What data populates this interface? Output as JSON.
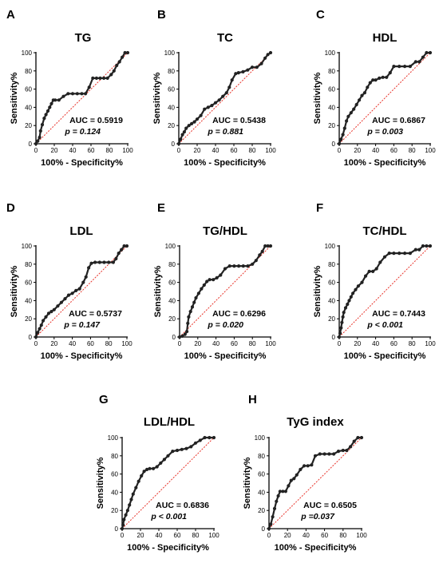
{
  "chart_data": [
    {
      "letter": "A",
      "title": "TG",
      "type": "line",
      "xlabel": "100% - Specificity%",
      "ylabel": "Sensitivity%",
      "xlim": [
        0,
        100
      ],
      "ylim": [
        0,
        100
      ],
      "xticks": [
        "0",
        "20",
        "40",
        "60",
        "80",
        "100"
      ],
      "yticks": [
        "0",
        "20",
        "40",
        "60",
        "80",
        "100"
      ],
      "auc": "AUC = 0.5919",
      "p": "p = 0.124",
      "x": [
        0,
        2,
        4,
        5,
        7,
        9,
        11,
        13,
        15,
        17,
        19,
        21,
        25,
        30,
        35,
        40,
        45,
        50,
        54,
        58,
        62,
        66,
        70,
        74,
        78,
        82,
        85,
        88,
        91,
        94,
        97,
        100
      ],
      "y": [
        0,
        3,
        7,
        14,
        21,
        28,
        32,
        36,
        40,
        44,
        48,
        48,
        48,
        52,
        55,
        55,
        55,
        55,
        55,
        62,
        72,
        72,
        72,
        72,
        72,
        76,
        80,
        86,
        90,
        95,
        100,
        100
      ]
    },
    {
      "letter": "B",
      "title": "TC",
      "type": "line",
      "xlabel": "100% - Specificity%",
      "ylabel": "Sensitivity%",
      "xlim": [
        0,
        100
      ],
      "ylim": [
        0,
        100
      ],
      "xticks": [
        "0",
        "20",
        "40",
        "60",
        "80",
        "100"
      ],
      "yticks": [
        "0",
        "20",
        "40",
        "60",
        "80",
        "100"
      ],
      "auc": "AUC = 0.5438",
      "p": "p = 0.881",
      "x": [
        0,
        2,
        4,
        6,
        8,
        11,
        14,
        17,
        20,
        24,
        28,
        32,
        36,
        40,
        44,
        48,
        52,
        55,
        58,
        62,
        65,
        70,
        75,
        80,
        85,
        90,
        94,
        97,
        100
      ],
      "y": [
        0,
        5,
        10,
        13,
        17,
        20,
        22,
        24,
        27,
        31,
        38,
        40,
        42,
        45,
        48,
        52,
        56,
        62,
        70,
        77,
        78,
        79,
        81,
        84,
        84,
        88,
        94,
        98,
        100
      ]
    },
    {
      "letter": "C",
      "title": "HDL",
      "type": "line",
      "xlabel": "100% - Specificity%",
      "ylabel": "Sensitivity%",
      "xlim": [
        0,
        100
      ],
      "ylim": [
        0,
        100
      ],
      "xticks": [
        "0",
        "20",
        "40",
        "60",
        "80",
        "100"
      ],
      "yticks": [
        "0",
        "20",
        "40",
        "60",
        "80",
        "100"
      ],
      "auc": "AUC = 0.6867",
      "p": "p = 0.003",
      "x": [
        0,
        2,
        4,
        6,
        8,
        10,
        13,
        16,
        19,
        22,
        25,
        28,
        31,
        34,
        37,
        40,
        44,
        48,
        52,
        56,
        60,
        66,
        72,
        78,
        84,
        88,
        92,
        96,
        100
      ],
      "y": [
        0,
        5,
        10,
        17,
        25,
        30,
        34,
        38,
        43,
        48,
        53,
        56,
        62,
        67,
        70,
        70,
        72,
        73,
        73,
        78,
        85,
        85,
        85,
        85,
        90,
        90,
        95,
        100,
        100
      ]
    },
    {
      "letter": "D",
      "title": "LDL",
      "type": "line",
      "xlabel": "100% - Specificity%",
      "ylabel": "Sensitivity%",
      "xlim": [
        0,
        100
      ],
      "ylim": [
        0,
        100
      ],
      "xticks": [
        "0",
        "20",
        "40",
        "60",
        "80",
        "100"
      ],
      "yticks": [
        "0",
        "20",
        "40",
        "60",
        "80",
        "100"
      ],
      "auc": "AUC = 0.5737",
      "p": "p = 0.147",
      "x": [
        0,
        2,
        4,
        6,
        8,
        11,
        14,
        17,
        20,
        24,
        28,
        32,
        36,
        40,
        44,
        48,
        52,
        55,
        58,
        61,
        65,
        70,
        75,
        80,
        85,
        88,
        91,
        94,
        97,
        100
      ],
      "y": [
        0,
        5,
        9,
        13,
        18,
        22,
        26,
        28,
        30,
        34,
        38,
        42,
        46,
        48,
        51,
        53,
        60,
        66,
        76,
        81,
        82,
        82,
        82,
        82,
        82,
        86,
        92,
        96,
        100,
        100
      ]
    },
    {
      "letter": "E",
      "title": "TG/HDL",
      "type": "line",
      "xlabel": "100% - Specificity%",
      "ylabel": "Sensitivity%",
      "xlim": [
        0,
        100
      ],
      "ylim": [
        0,
        100
      ],
      "xticks": [
        "0",
        "20",
        "40",
        "60",
        "80",
        "100"
      ],
      "yticks": [
        "0",
        "20",
        "40",
        "60",
        "80",
        "100"
      ],
      "auc": "AUC = 0.6296",
      "p": "p = 0.020",
      "x": [
        0,
        3,
        6,
        8,
        9,
        10,
        12,
        14,
        16,
        18,
        21,
        24,
        27,
        30,
        33,
        37,
        41,
        45,
        50,
        55,
        60,
        65,
        70,
        75,
        80,
        84,
        88,
        91,
        94,
        97,
        100
      ],
      "y": [
        0,
        1,
        3,
        6,
        15,
        22,
        28,
        33,
        38,
        43,
        48,
        53,
        57,
        61,
        63,
        63,
        65,
        68,
        75,
        78,
        78,
        78,
        78,
        78,
        80,
        84,
        90,
        94,
        100,
        100,
        100
      ]
    },
    {
      "letter": "F",
      "title": "TC/HDL",
      "type": "line",
      "xlabel": "100% - Specificity%",
      "ylabel": "Sensitivity%",
      "xlim": [
        0,
        100
      ],
      "ylim": [
        0,
        100
      ],
      "xticks": [
        "0",
        "20",
        "40",
        "60",
        "80",
        "100"
      ],
      "yticks": [
        "0",
        "20",
        "40",
        "60",
        "80",
        "100"
      ],
      "auc": "AUC = 0.7443",
      "p": "p < 0.001",
      "x": [
        0,
        1,
        2,
        3,
        4,
        5,
        7,
        9,
        11,
        13,
        15,
        18,
        21,
        25,
        29,
        33,
        37,
        41,
        45,
        50,
        55,
        60,
        66,
        72,
        78,
        84,
        88,
        92,
        96,
        100
      ],
      "y": [
        0,
        4,
        10,
        16,
        22,
        27,
        32,
        36,
        40,
        44,
        48,
        52,
        56,
        60,
        67,
        72,
        72,
        75,
        82,
        88,
        92,
        92,
        92,
        92,
        92,
        96,
        96,
        100,
        100,
        100
      ]
    },
    {
      "letter": "G",
      "title": "LDL/HDL",
      "type": "line",
      "xlabel": "100% - Specificity%",
      "ylabel": "Sensitivity%",
      "xlim": [
        0,
        100
      ],
      "ylim": [
        0,
        100
      ],
      "xticks": [
        "0",
        "20",
        "40",
        "60",
        "80",
        "100"
      ],
      "yticks": [
        "0",
        "20",
        "40",
        "60",
        "80",
        "100"
      ],
      "auc": "AUC = 0.6836",
      "p": "p < 0.001",
      "x": [
        0,
        1,
        2,
        4,
        6,
        8,
        10,
        12,
        15,
        18,
        21,
        24,
        27,
        30,
        34,
        38,
        42,
        46,
        50,
        55,
        60,
        65,
        70,
        75,
        80,
        85,
        90,
        95,
        100
      ],
      "y": [
        0,
        4,
        10,
        15,
        20,
        26,
        32,
        38,
        45,
        52,
        58,
        63,
        65,
        66,
        66,
        68,
        72,
        76,
        80,
        85,
        86,
        87,
        88,
        90,
        94,
        97,
        100,
        100,
        100
      ]
    },
    {
      "letter": "H",
      "title": "TyG index",
      "type": "line",
      "xlabel": "100% - Specificity%",
      "ylabel": "Sensitivity%",
      "xlim": [
        0,
        100
      ],
      "ylim": [
        0,
        100
      ],
      "xticks": [
        "0",
        "20",
        "40",
        "60",
        "80",
        "100"
      ],
      "yticks": [
        "0",
        "20",
        "40",
        "60",
        "80",
        "100"
      ],
      "auc": "AUC = 0.6505",
      "p": "p =0.037",
      "x": [
        0,
        2,
        4,
        6,
        8,
        10,
        12,
        15,
        18,
        21,
        24,
        27,
        30,
        34,
        38,
        42,
        46,
        50,
        55,
        60,
        65,
        70,
        75,
        80,
        84,
        88,
        92,
        96,
        100
      ],
      "y": [
        0,
        5,
        13,
        22,
        30,
        36,
        41,
        41,
        41,
        47,
        53,
        55,
        59,
        65,
        69,
        69,
        70,
        80,
        82,
        82,
        82,
        82,
        85,
        86,
        86,
        90,
        96,
        100,
        100
      ]
    }
  ]
}
